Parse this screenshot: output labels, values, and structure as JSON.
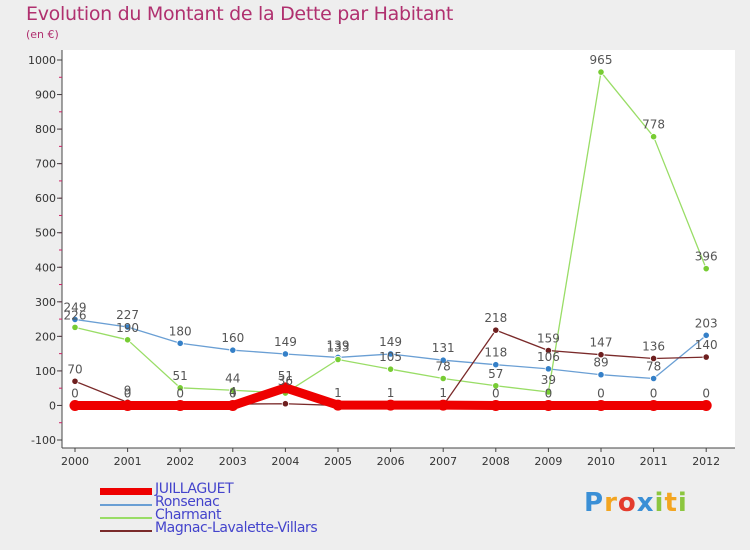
{
  "title": "Evolution du Montant de la Dette par Habitant",
  "unit_label": "(en €)",
  "logo": {
    "letters": [
      {
        "ch": "P",
        "color": "#3a8fd6"
      },
      {
        "ch": "r",
        "color": "#f3a520"
      },
      {
        "ch": "o",
        "color": "#e43b2c"
      },
      {
        "ch": "x",
        "color": "#3a8fd6"
      },
      {
        "ch": "i",
        "color": "#8cc63f"
      },
      {
        "ch": "t",
        "color": "#f3a520"
      },
      {
        "ch": "i",
        "color": "#8cc63f"
      }
    ]
  },
  "chart_data": {
    "type": "line",
    "title": "Evolution du Montant de la Dette par Habitant",
    "ylabel": "(en €)",
    "xlabel": "",
    "x": [
      "2000",
      "2001",
      "2002",
      "2003",
      "2004",
      "2005",
      "2006",
      "2007",
      "2008",
      "2009",
      "2010",
      "2011",
      "2012"
    ],
    "ylim": [
      -100,
      1000
    ],
    "yticks": [
      -100,
      0,
      100,
      200,
      300,
      400,
      500,
      600,
      700,
      800,
      900,
      1000
    ],
    "grid": false,
    "legend_position": "bottom-left",
    "series": [
      {
        "name": "JUILLAGUET",
        "color": "#ee0000",
        "width": 9,
        "values": [
          0,
          0,
          0,
          0,
          51,
          1,
          1,
          1,
          0,
          0,
          0,
          0,
          0
        ],
        "labels": [
          "0",
          "0",
          "0",
          "0",
          "51",
          "1",
          "1",
          "1",
          "0",
          "0",
          "0",
          "0",
          "0"
        ],
        "label_color": "#555555",
        "label_visible": [
          true,
          true,
          true,
          true,
          true,
          true,
          true,
          true,
          true,
          true,
          true,
          true,
          true
        ]
      },
      {
        "name": "Ronsenac",
        "color": "#6a9fd4",
        "marker": "#3580c8",
        "width": 1.3,
        "values": [
          249,
          227,
          180,
          160,
          149,
          139,
          149,
          131,
          118,
          106,
          89,
          78,
          203
        ],
        "labels": [
          "249",
          "227",
          "180",
          "160",
          "149",
          "139",
          "149",
          "131",
          "118",
          "106",
          "89",
          "78",
          "203"
        ],
        "label_color": "#555555",
        "label_visible": [
          true,
          true,
          true,
          true,
          true,
          true,
          true,
          true,
          true,
          true,
          true,
          true,
          true
        ]
      },
      {
        "name": "Charmant",
        "color": "#99dd66",
        "marker": "#77cc33",
        "width": 1.3,
        "values": [
          226,
          190,
          51,
          44,
          36,
          133,
          105,
          78,
          57,
          39,
          965,
          778,
          396
        ],
        "labels": [
          "226",
          "190",
          "51",
          "44",
          "36",
          "133",
          "105",
          "78",
          "57",
          "39",
          "965",
          "778",
          "396"
        ],
        "label_color": "#555555",
        "label_visible": [
          true,
          true,
          true,
          true,
          true,
          true,
          true,
          true,
          true,
          true,
          true,
          true,
          true
        ]
      },
      {
        "name": "Magnac-Lavalette-Villars",
        "color": "#7a2a2a",
        "marker": "#6e1f1f",
        "width": 1.3,
        "values": [
          70,
          9,
          0,
          4,
          5,
          0,
          0,
          0,
          218,
          159,
          147,
          136,
          140
        ],
        "labels": [
          "70",
          "9",
          "0",
          "4",
          "",
          "0",
          "0",
          "",
          "218",
          "159",
          "147",
          "136",
          "140"
        ],
        "label_color": "#555555",
        "label_visible": [
          true,
          true,
          false,
          true,
          false,
          false,
          false,
          false,
          true,
          true,
          true,
          true,
          true
        ]
      }
    ],
    "legend_color": "#4444cc"
  }
}
